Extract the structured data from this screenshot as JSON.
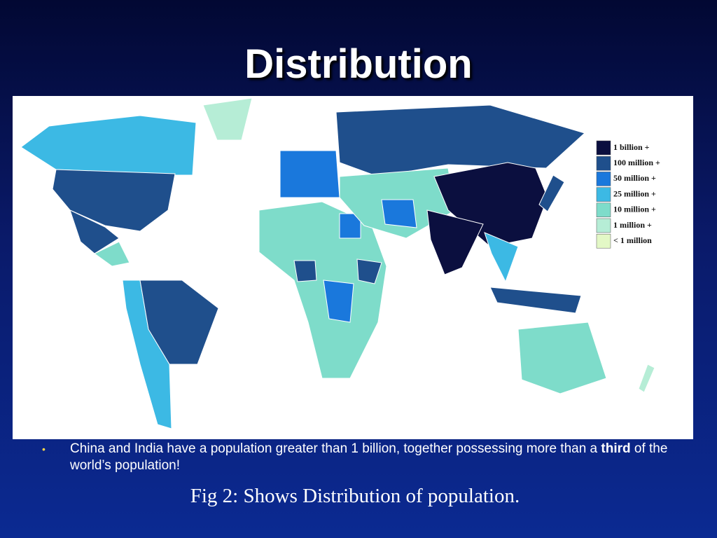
{
  "title": "Distribution",
  "map": {
    "legend": [
      {
        "label": "1 billion +",
        "color": "#0b0f3f"
      },
      {
        "label": "100 million +",
        "color": "#1f4f8c"
      },
      {
        "label": "50 million +",
        "color": "#1a78dc"
      },
      {
        "label": "25 million +",
        "color": "#3cb9e4"
      },
      {
        "label": "10 million +",
        "color": "#7edcca"
      },
      {
        "label": "1 million +",
        "color": "#b6edd6"
      },
      {
        "label": "< 1 million",
        "color": "#e3f8c6"
      }
    ]
  },
  "bullet": {
    "parts": [
      "China and India have a population greater than 1 billion, together possessing more than a ",
      "third",
      " of the world’s population!"
    ]
  },
  "caption": "Fig 2: Shows Distribution of population."
}
